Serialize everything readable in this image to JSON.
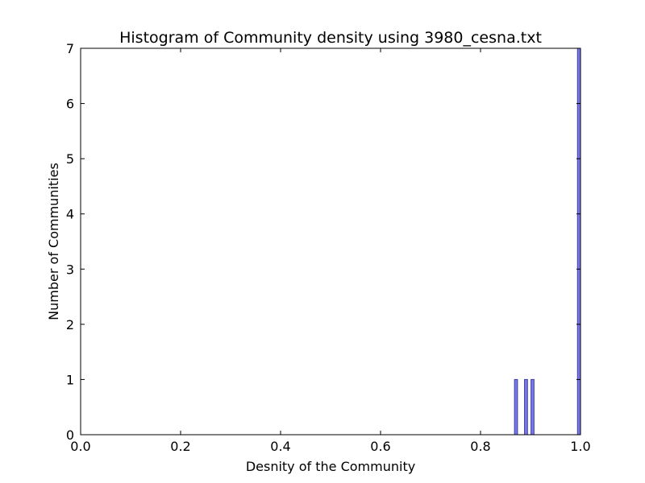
{
  "chart_data": {
    "type": "bar",
    "title": "Histogram of Community density using 3980_cesna.txt",
    "xlabel": "Desnity of the Community",
    "ylabel": "Number of Communities",
    "xlim": [
      0.0,
      1.0
    ],
    "ylim": [
      0,
      7
    ],
    "xticks": [
      "0.0",
      "0.2",
      "0.4",
      "0.6",
      "0.8",
      "1.0"
    ],
    "yticks": [
      "0",
      "1",
      "2",
      "3",
      "4",
      "5",
      "6",
      "7"
    ],
    "grid": false,
    "bar_color": "#7b7be8",
    "bar_edge_color": "#3a3aa8",
    "bins": [
      {
        "x_start": 0.868,
        "x_end": 0.874,
        "count": 1
      },
      {
        "x_start": 0.888,
        "x_end": 0.894,
        "count": 1
      },
      {
        "x_start": 0.901,
        "x_end": 0.907,
        "count": 1
      },
      {
        "x_start": 0.994,
        "x_end": 1.0,
        "count": 7
      }
    ]
  }
}
